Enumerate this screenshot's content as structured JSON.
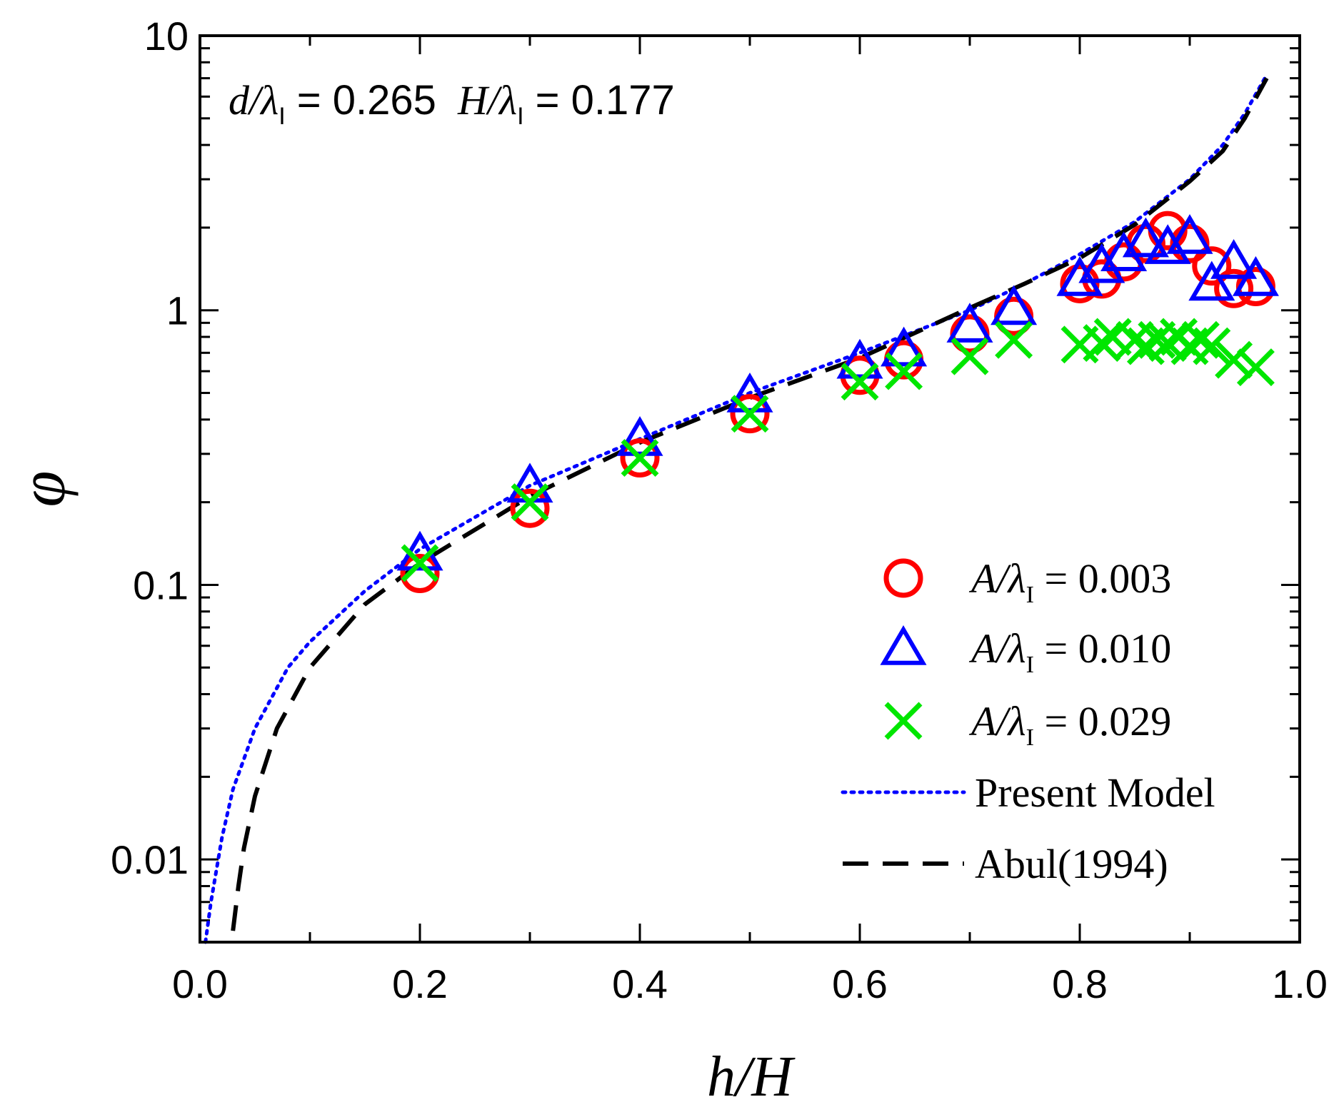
{
  "chart_data": {
    "type": "scatter",
    "xlabel": "h/H",
    "ylabel": "φ",
    "xlim": [
      0.0,
      1.0
    ],
    "ylim": [
      0.005,
      10
    ],
    "yscale": "log",
    "x_ticks": [
      0.0,
      0.2,
      0.4,
      0.6,
      0.8,
      1.0
    ],
    "x_tick_labels": [
      "0.0",
      "0.2",
      "0.4",
      "0.6",
      "0.8",
      "1.0"
    ],
    "y_ticks": [
      0.01,
      0.1,
      1,
      10
    ],
    "y_tick_labels": [
      "0.01",
      "0.1",
      "1",
      "10"
    ],
    "annotation": {
      "d_label": "d/λ",
      "sub": "I",
      "d_value": " = 0.265",
      "H_label": "H/λ",
      "H_value": " = 0.177"
    },
    "legend_position": "bottom-right",
    "series": [
      {
        "name": "A/λI = 0.003",
        "label_main": "A/λ",
        "label_sub": "I",
        "label_value": " = 0.003",
        "marker": "circle",
        "color": "#ff0000",
        "x": [
          0.2,
          0.3,
          0.4,
          0.5,
          0.6,
          0.64,
          0.7,
          0.74,
          0.8,
          0.82,
          0.84,
          0.86,
          0.88,
          0.9,
          0.92,
          0.94,
          0.96
        ],
        "y": [
          0.11,
          0.19,
          0.29,
          0.42,
          0.58,
          0.66,
          0.82,
          0.95,
          1.25,
          1.3,
          1.5,
          1.75,
          1.95,
          1.75,
          1.45,
          1.2,
          1.22
        ]
      },
      {
        "name": "A/λI = 0.010",
        "label_main": "A/λ",
        "label_sub": "I",
        "label_value": " = 0.010",
        "marker": "triangle",
        "color": "#0000ff",
        "x": [
          0.2,
          0.3,
          0.4,
          0.5,
          0.6,
          0.64,
          0.7,
          0.74,
          0.8,
          0.82,
          0.84,
          0.86,
          0.88,
          0.9,
          0.92,
          0.94,
          0.96
        ],
        "y": [
          0.13,
          0.23,
          0.34,
          0.49,
          0.65,
          0.72,
          0.88,
          1.02,
          1.3,
          1.45,
          1.6,
          1.8,
          1.7,
          1.85,
          1.25,
          1.5,
          1.3
        ]
      },
      {
        "name": "A/λI = 0.029",
        "label_main": "A/λ",
        "label_sub": "I",
        "label_value": " = 0.029",
        "marker": "x",
        "color": "#00e600",
        "x": [
          0.2,
          0.3,
          0.4,
          0.5,
          0.6,
          0.64,
          0.7,
          0.74,
          0.8,
          0.82,
          0.83,
          0.85,
          0.86,
          0.87,
          0.88,
          0.89,
          0.9,
          0.91,
          0.92,
          0.94,
          0.96
        ],
        "y": [
          0.12,
          0.2,
          0.29,
          0.42,
          0.55,
          0.6,
          0.68,
          0.78,
          0.75,
          0.76,
          0.8,
          0.78,
          0.74,
          0.78,
          0.76,
          0.8,
          0.74,
          0.78,
          0.74,
          0.66,
          0.62
        ]
      },
      {
        "name": "Present Model",
        "marker": "dotted-line",
        "color": "#0000ff",
        "x": [
          0.005,
          0.01,
          0.02,
          0.03,
          0.05,
          0.08,
          0.1,
          0.15,
          0.2,
          0.3,
          0.4,
          0.5,
          0.6,
          0.7,
          0.75,
          0.8,
          0.85,
          0.9,
          0.93,
          0.95,
          0.97
        ],
        "y": [
          0.005,
          0.007,
          0.012,
          0.018,
          0.03,
          0.05,
          0.062,
          0.095,
          0.135,
          0.23,
          0.34,
          0.5,
          0.7,
          1.0,
          1.25,
          1.6,
          2.1,
          3.0,
          4.0,
          5.2,
          7.2
        ]
      },
      {
        "name": "Abul(1994)",
        "marker": "dashed-line",
        "color": "#000000",
        "x": [
          0.03,
          0.035,
          0.04,
          0.05,
          0.07,
          0.1,
          0.15,
          0.2,
          0.3,
          0.4,
          0.5,
          0.6,
          0.7,
          0.75,
          0.8,
          0.85,
          0.9,
          0.93,
          0.95,
          0.97
        ],
        "y": [
          0.0055,
          0.008,
          0.011,
          0.017,
          0.03,
          0.05,
          0.085,
          0.12,
          0.21,
          0.33,
          0.48,
          0.67,
          1.02,
          1.25,
          1.55,
          2.05,
          2.95,
          3.8,
          5.0,
          7.0
        ]
      }
    ]
  }
}
